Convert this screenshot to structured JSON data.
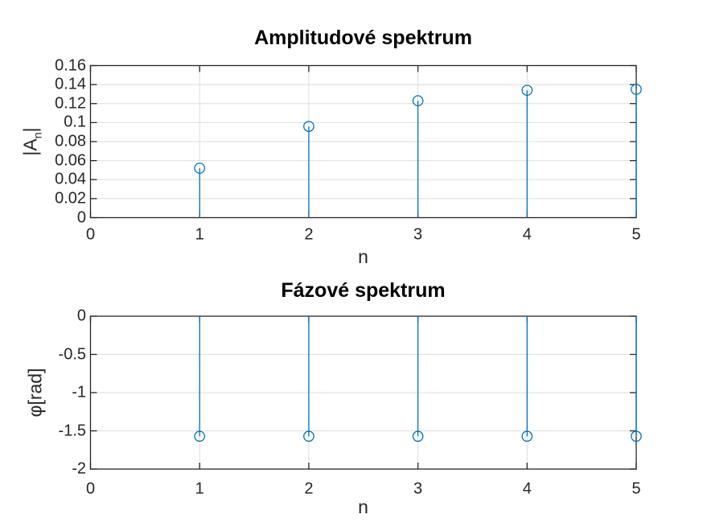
{
  "colors": {
    "background": "#ffffff",
    "stem": "#0072BD",
    "grid": "#dedede",
    "axis": "#262626",
    "tick_label": "#262626",
    "title": "#000000"
  },
  "chart_data": [
    {
      "type": "stem",
      "title": "Amplitudové spektrum",
      "xlabel": "n",
      "ylabel": "|A_n|",
      "x": [
        1,
        2,
        3,
        4,
        5
      ],
      "values": [
        0.052,
        0.096,
        0.123,
        0.134,
        0.135
      ],
      "xlim": [
        0,
        5
      ],
      "ylim": [
        0,
        0.16
      ],
      "xticks": [
        0,
        1,
        2,
        3,
        4,
        5
      ],
      "xtick_labels": [
        "0",
        "1",
        "2",
        "3",
        "4",
        "5"
      ],
      "yticks": [
        0,
        0.02,
        0.04,
        0.06,
        0.08,
        0.1,
        0.12,
        0.14,
        0.16
      ],
      "ytick_labels": [
        "0",
        "0.02",
        "0.04",
        "0.06",
        "0.08",
        "0.1",
        "0.12",
        "0.14",
        "0.16"
      ],
      "baseline_value": 0,
      "grid": true,
      "legend_position": "none",
      "marker": "hollow-circle"
    },
    {
      "type": "stem",
      "title": "Fázové spektrum",
      "xlabel": "n",
      "ylabel": "φ[rad]",
      "x": [
        1,
        2,
        3,
        4,
        5
      ],
      "values": [
        -1.571,
        -1.571,
        -1.571,
        -1.571,
        -1.571
      ],
      "xlim": [
        0,
        5
      ],
      "ylim": [
        -2,
        0
      ],
      "xticks": [
        0,
        1,
        2,
        3,
        4,
        5
      ],
      "xtick_labels": [
        "0",
        "1",
        "2",
        "3",
        "4",
        "5"
      ],
      "yticks": [
        -2,
        -1.5,
        -1,
        -0.5,
        0
      ],
      "ytick_labels": [
        "-2",
        "-1.5",
        "-1",
        "-0.5",
        "0"
      ],
      "baseline_value": 0,
      "grid": true,
      "legend_position": "none",
      "marker": "hollow-circle"
    }
  ]
}
